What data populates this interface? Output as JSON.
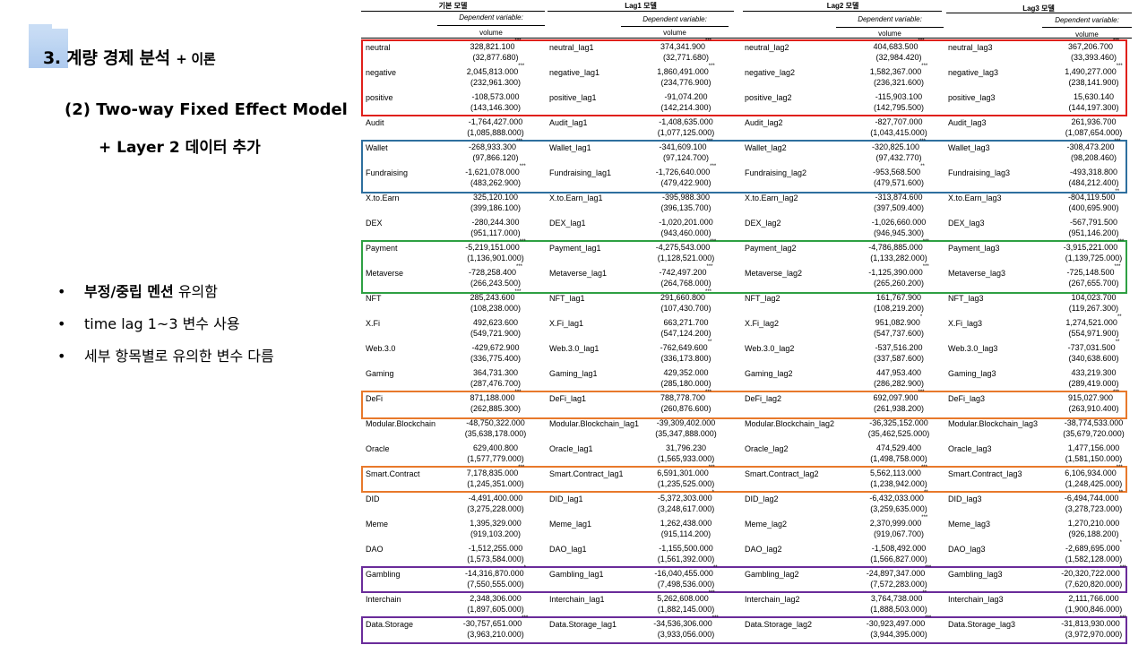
{
  "slide": {
    "title": "3. 계량 경제 분석",
    "title_suffix": "+ 이론",
    "subtitle": "(2) Two-way Fixed Effect Model",
    "subtitle2": "+ Layer 2 데이터 추가",
    "bullets": [
      {
        "bold": "부정/중립 멘션",
        "rest": " 유의함"
      },
      {
        "bold": "",
        "rest": "time lag 1~3 변수 사용"
      },
      {
        "bold": "",
        "rest": "세부 항목별로 유의한 변수 다름"
      }
    ]
  },
  "table": {
    "models": [
      "기본 모델",
      "Lag1 모델",
      "Lag2 모델",
      "Lag3 모델"
    ],
    "dependent_label": "Dependent variable:",
    "dependent_var": "volume",
    "rows": [
      {
        "n": [
          "neutral",
          "neutral_lag1",
          "neutral_lag2",
          "neutral_lag3"
        ],
        "v": [
          [
            "328,821.100",
            "***",
            "(32,877.680)"
          ],
          [
            "374,341.900",
            "***",
            "(32,771.680)"
          ],
          [
            "404,683.500",
            "***",
            "(32,984.420)"
          ],
          [
            "367,206.700",
            "***",
            "(33,393.460)"
          ]
        ]
      },
      {
        "n": [
          "negative",
          "negative_lag1",
          "negative_lag2",
          "negative_lag3"
        ],
        "v": [
          [
            "2,045,813.000",
            "***",
            "(232,961.300)"
          ],
          [
            "1,860,491.000",
            "***",
            "(234,776.900)"
          ],
          [
            "1,582,367.000",
            "***",
            "(236,321.600)"
          ],
          [
            "1,490,277.000",
            "***",
            "(238,141.900)"
          ]
        ]
      },
      {
        "n": [
          "positive",
          "positive_lag1",
          "positive_lag2",
          "positive_lag3"
        ],
        "v": [
          [
            "-108,573.000",
            "",
            "(143,146.300)"
          ],
          [
            "-91,074.200",
            "",
            "(142,214.300)"
          ],
          [
            "-115,903.100",
            "",
            "(142,795.500)"
          ],
          [
            "15,630.140",
            "",
            "(144,197.300)"
          ]
        ]
      },
      {
        "n": [
          "Audit",
          "Audit_lag1",
          "Audit_lag2",
          "Audit_lag3"
        ],
        "v": [
          [
            "-1,764,427.000",
            "",
            "(1,085,888.000)"
          ],
          [
            "-1,408,635.000",
            "",
            "(1,077,125.000)"
          ],
          [
            "-827,707.000",
            "",
            "(1,043,415.000)"
          ],
          [
            "261,936.700",
            "",
            "(1,087,654.000)"
          ]
        ]
      },
      {
        "n": [
          "Wallet",
          "Wallet_lag1",
          "Wallet_lag2",
          "Wallet_lag3"
        ],
        "v": [
          [
            "-268,933.300",
            "***",
            "(97,866.120)"
          ],
          [
            "-341,609.100",
            "***",
            "(97,124.700)"
          ],
          [
            "-320,825.100",
            "***",
            "(97,432.770)"
          ],
          [
            "-308,473.200",
            "***",
            "(98,208.460)"
          ]
        ]
      },
      {
        "n": [
          "Fundraising",
          "Fundraising_lag1",
          "Fundraising_lag2",
          "Fundraising_lag3"
        ],
        "v": [
          [
            "-1,621,078.000",
            "***",
            "(483,262.900)"
          ],
          [
            "-1,726,640.000",
            "***",
            "(479,422.900)"
          ],
          [
            "-953,568.500",
            "**",
            "(479,571.600)"
          ],
          [
            "-493,318.800",
            "",
            "(484,212.400)"
          ]
        ]
      },
      {
        "n": [
          "X.to.Earn",
          "X.to.Earn_lag1",
          "X.to.Earn_lag2",
          "X.to.Earn_lag3"
        ],
        "v": [
          [
            "325,120.100",
            "",
            "(399,186.100)"
          ],
          [
            "-395,988.300",
            "",
            "(396,135.700)"
          ],
          [
            "-313,874.600",
            "",
            "(397,509.400)"
          ],
          [
            "-804,119.500",
            "**",
            "(400,695.900)"
          ]
        ]
      },
      {
        "n": [
          "DEX",
          "DEX_lag1",
          "DEX_lag2",
          "DEX_lag3"
        ],
        "v": [
          [
            "-280,244.300",
            "",
            "(951,117.000)"
          ],
          [
            "-1,020,201.000",
            "",
            "(943,460.000)"
          ],
          [
            "-1,026,660.000",
            "",
            "(946,945.300)"
          ],
          [
            "-567,791.500",
            "",
            "(951,146.200)"
          ]
        ]
      },
      {
        "n": [
          "Payment",
          "Payment_lag1",
          "Payment_lag2",
          "Payment_lag3"
        ],
        "v": [
          [
            "-5,219,151.000",
            "***",
            "(1,136,901.000)"
          ],
          [
            "-4,275,543.000",
            "***",
            "(1,128,521.000)"
          ],
          [
            "-4,786,885.000",
            "***",
            "(1,133,282.000)"
          ],
          [
            "-3,915,221.000",
            "***",
            "(1,139,725.000)"
          ]
        ]
      },
      {
        "n": [
          "Metaverse",
          "Metaverse_lag1",
          "Metaverse_lag2",
          "Metaverse_lag3"
        ],
        "v": [
          [
            "-728,258.400",
            "***",
            "(266,243.500)"
          ],
          [
            "-742,497.200",
            "***",
            "(264,768.000)"
          ],
          [
            "-1,125,390.000",
            "***",
            "(265,260.200)"
          ],
          [
            "-725,148.500",
            "***",
            "(267,655.700)"
          ]
        ]
      },
      {
        "n": [
          "NFT",
          "NFT_lag1",
          "NFT_lag2",
          "NFT_lag3"
        ],
        "v": [
          [
            "285,243.600",
            "***",
            "(108,238.000)"
          ],
          [
            "291,660.800",
            "***",
            "(107,430.700)"
          ],
          [
            "161,767.900",
            "",
            "(108,219.200)"
          ],
          [
            "104,023.700",
            "",
            "(119,267.300)"
          ]
        ]
      },
      {
        "n": [
          "X.Fi",
          "X.Fi_lag1",
          "X.Fi_lag2",
          "X.Fi_lag3"
        ],
        "v": [
          [
            "492,623.600",
            "",
            "(549,721.900)"
          ],
          [
            "663,271.700",
            "",
            "(547,124.200)"
          ],
          [
            "951,082.900",
            "*",
            "(547,737.600)"
          ],
          [
            "1,274,521.000",
            "**",
            "(554,971.900)"
          ]
        ]
      },
      {
        "n": [
          "Web.3.0",
          "Web.3.0_lag1",
          "Web.3.0_lag2",
          "Web.3.0_lag3"
        ],
        "v": [
          [
            "-429,672.900",
            "",
            "(336,775.400)"
          ],
          [
            "-762,649.600",
            "**",
            "(336,173.800)"
          ],
          [
            "-537,516.200",
            "",
            "(337,587.600)"
          ],
          [
            "-737,031.500",
            "**",
            "(340,638.600)"
          ]
        ]
      },
      {
        "n": [
          "Gaming",
          "Gaming_lag1",
          "Gaming_lag2",
          "Gaming_lag3"
        ],
        "v": [
          [
            "364,731.300",
            "",
            "(287,476.700)"
          ],
          [
            "429,352.000",
            "",
            "(285,180.000)"
          ],
          [
            "447,953.400",
            "",
            "(286,282.900)"
          ],
          [
            "433,219.300",
            "",
            "(289,419.000)"
          ]
        ]
      },
      {
        "n": [
          "DeFi",
          "DeFi_lag1",
          "DeFi_lag2",
          "DeFi_lag3"
        ],
        "v": [
          [
            "871,188.000",
            "***",
            "(262,885.300)"
          ],
          [
            "788,778.700",
            "***",
            "(260,876.600)"
          ],
          [
            "692,097.900",
            "***",
            "(261,938.200)"
          ],
          [
            "915,027.900",
            "***",
            "(263,910.400)"
          ]
        ]
      },
      {
        "n": [
          "Modular.Blockchain",
          "Modular.Blockchain_lag1",
          "Modular.Blockchain_lag2",
          "Modular.Blockchain_lag3"
        ],
        "v": [
          [
            "-48,750,322.000",
            "",
            "(35,638,178.000)"
          ],
          [
            "-39,309,402.000",
            "",
            "(35,347,888.000)"
          ],
          [
            "-36,325,152.000",
            "",
            "(35,462,525.000)"
          ],
          [
            "-38,774,533.000",
            "",
            "(35,679,720.000)"
          ]
        ]
      },
      {
        "n": [
          "Oracle",
          "Oracle_lag1",
          "Oracle_lag2",
          "Oracle_lag3"
        ],
        "v": [
          [
            "629,400.800",
            "",
            "(1,577,779.000)"
          ],
          [
            "31,796.230",
            "",
            "(1,565,933.000)"
          ],
          [
            "474,529.400",
            "",
            "(1,498,758.000)"
          ],
          [
            "1,477,156.000",
            "",
            "(1,581,150.000)"
          ]
        ]
      },
      {
        "n": [
          "Smart.Contract",
          "Smart.Contract_lag1",
          "Smart.Contract_lag2",
          "Smart.Contract_lag3"
        ],
        "v": [
          [
            "7,178,835.000",
            "***",
            "(1,245,351.000)"
          ],
          [
            "6,591,301.000",
            "***",
            "(1,235,525.000)"
          ],
          [
            "5,562,113.000",
            "***",
            "(1,238,942.000)"
          ],
          [
            "6,106,934.000",
            "***",
            "(1,248,425.000)"
          ]
        ]
      },
      {
        "n": [
          "DID",
          "DID_lag1",
          "DID_lag2",
          "DID_lag3"
        ],
        "v": [
          [
            "-4,491,400.000",
            "",
            "(3,275,228.000)"
          ],
          [
            "-5,372,303.000",
            "*",
            "(3,248,617.000)"
          ],
          [
            "-6,432,033.000",
            "**",
            "(3,259,635.000)"
          ],
          [
            "-6,494,744.000",
            "**",
            "(3,278,723.000)"
          ]
        ]
      },
      {
        "n": [
          "Meme",
          "Meme_lag1",
          "Meme_lag2",
          "Meme_lag3"
        ],
        "v": [
          [
            "1,395,329.000",
            "",
            "(919,103.200)"
          ],
          [
            "1,262,438.000",
            "",
            "(915,114.200)"
          ],
          [
            "2,370,999.000",
            "***",
            "(919,067.700)"
          ],
          [
            "1,270,210.000",
            "",
            "(926,188.200)"
          ]
        ]
      },
      {
        "n": [
          "DAO",
          "DAO_lag1",
          "DAO_lag2",
          "DAO_lag3"
        ],
        "v": [
          [
            "-1,512,255.000",
            "",
            "(1,573,584.000)"
          ],
          [
            "-1,155,500.000",
            "",
            "(1,561,392.000)"
          ],
          [
            "-1,508,492.000",
            "",
            "(1,566,827.000)"
          ],
          [
            "-2,689,695.000",
            "*",
            "(1,582,128.000)"
          ]
        ]
      },
      {
        "n": [
          "Gambling",
          "Gambling_lag1",
          "Gambling_lag2",
          "Gambling_lag3"
        ],
        "v": [
          [
            "-14,316,870.000",
            "*",
            "(7,550,555.000)"
          ],
          [
            "-16,040,455.000",
            "**",
            "(7,498,536.000)"
          ],
          [
            "-24,897,347.000",
            "***",
            "(7,572,283.000)"
          ],
          [
            "-20,320,722.000",
            "***",
            "(7,620,820.000)"
          ]
        ]
      },
      {
        "n": [
          "Interchain",
          "Interchain_lag1",
          "Interchain_lag2",
          "Interchain_lag3"
        ],
        "v": [
          [
            "2,348,306.000",
            "",
            "(1,897,605.000)"
          ],
          [
            "5,262,608.000",
            "***",
            "(1,882,145.000)"
          ],
          [
            "3,764,738.000",
            "**",
            "(1,888,503.000)"
          ],
          [
            "2,111,766.000",
            "",
            "(1,900,846.000)"
          ]
        ]
      },
      {
        "n": [
          "Data.Storage",
          "Data.Storage_lag1",
          "Data.Storage_lag2",
          "Data.Storage_lag3"
        ],
        "v": [
          [
            "-30,757,651.000",
            "***",
            "(3,963,210.000)"
          ],
          [
            "-34,536,306.000",
            "***",
            "(3,933,056.000)"
          ],
          [
            "-30,923,497.000",
            "***",
            "(3,944,395.000)"
          ],
          [
            "-31,813,930.000",
            "***",
            "(3,972,970.000)"
          ]
        ]
      }
    ],
    "highlight_colors": {
      "red": "#e0201b",
      "blue": "#2e6f9e",
      "green": "#2ea043",
      "orange": "#e8792b",
      "purple": "#6a2c9a"
    }
  }
}
